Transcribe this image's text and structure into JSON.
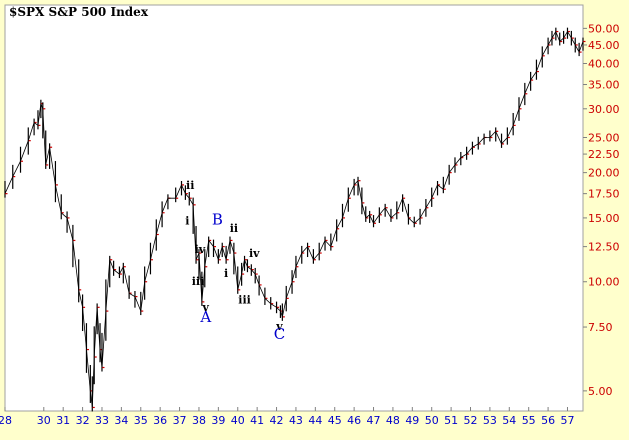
{
  "chart_data": {
    "type": "line",
    "title": "$SPX S&P 500 Index",
    "yscale": "log",
    "ylim": [
      4.4,
      58
    ],
    "yticks": [
      "5.00",
      "7.50",
      "10.00",
      "12.50",
      "15.00",
      "17.50",
      "20.00",
      "22.50",
      "25.00",
      "30.00",
      "35.00",
      "40.00",
      "45.00",
      "50.00"
    ],
    "ytick_values": [
      5,
      7.5,
      10,
      12.5,
      15,
      17.5,
      20,
      22.5,
      25,
      30,
      35,
      40,
      45,
      50
    ],
    "xlim": [
      1928.0,
      1957.8
    ],
    "xticks": [
      "28",
      "30",
      "31",
      "32",
      "33",
      "34",
      "35",
      "36",
      "37",
      "38",
      "39",
      "40",
      "41",
      "42",
      "43",
      "44",
      "45",
      "46",
      "47",
      "48",
      "49",
      "50",
      "51",
      "52",
      "53",
      "54",
      "55",
      "56",
      "57"
    ],
    "xtick_values": [
      1928,
      1930,
      1931,
      1932,
      1933,
      1934,
      1935,
      1936,
      1937,
      1938,
      1939,
      1940,
      1941,
      1942,
      1943,
      1944,
      1945,
      1946,
      1947,
      1948,
      1949,
      1950,
      1951,
      1952,
      1953,
      1954,
      1955,
      1956,
      1957
    ],
    "grid": false,
    "series": [
      {
        "color": "#CC0000",
        "x": [
          1928.0,
          1928.4,
          1928.8,
          1929.2,
          1929.5,
          1929.7,
          1929.85,
          1929.95,
          1930.1,
          1930.3,
          1930.6,
          1930.9,
          1931.2,
          1931.5,
          1931.8,
          1932.0,
          1932.2,
          1932.4,
          1932.5,
          1932.6,
          1932.75,
          1932.9,
          1933.0,
          1933.2,
          1933.4,
          1933.6,
          1933.9,
          1934.1,
          1934.4,
          1934.7,
          1935.0,
          1935.2,
          1935.5,
          1935.8,
          1936.1,
          1936.4,
          1936.8,
          1937.1,
          1937.3,
          1937.5,
          1937.7,
          1937.85,
          1938.0,
          1938.15,
          1938.3,
          1938.5,
          1938.75,
          1939.0,
          1939.2,
          1939.4,
          1939.6,
          1939.8,
          1940.0,
          1940.2,
          1940.35,
          1940.5,
          1940.7,
          1940.9,
          1941.1,
          1941.4,
          1941.7,
          1942.0,
          1942.2,
          1942.3,
          1942.5,
          1942.8,
          1943.0,
          1943.3,
          1943.6,
          1943.9,
          1944.2,
          1944.5,
          1944.8,
          1945.1,
          1945.4,
          1945.7,
          1946.0,
          1946.2,
          1946.4,
          1946.6,
          1946.8,
          1947.0,
          1947.3,
          1947.6,
          1947.9,
          1948.2,
          1948.5,
          1948.8,
          1949.1,
          1949.4,
          1949.7,
          1950.0,
          1950.3,
          1950.6,
          1950.9,
          1951.2,
          1951.5,
          1951.8,
          1952.1,
          1952.4,
          1952.7,
          1953.0,
          1953.3,
          1953.6,
          1953.9,
          1954.2,
          1954.5,
          1954.8,
          1955.1,
          1955.4,
          1955.7,
          1956.0,
          1956.2,
          1956.4,
          1956.6,
          1956.8,
          1957.0,
          1957.2,
          1957.4,
          1957.6,
          1957.8
        ],
        "values": [
          17.5,
          19.5,
          21.5,
          24.5,
          27.5,
          27,
          31,
          30,
          21,
          23.5,
          18.5,
          15.5,
          15,
          13,
          9.5,
          8.5,
          6.5,
          5.0,
          4.5,
          6.2,
          8.5,
          6.5,
          5.8,
          8.3,
          11.5,
          10.8,
          10.5,
          11,
          9.3,
          9.1,
          8.3,
          10,
          11.5,
          13.5,
          15.5,
          17,
          17,
          18.5,
          17.5,
          17,
          16.3,
          11.5,
          12,
          8.8,
          11,
          13,
          12.5,
          11.5,
          12.5,
          11.5,
          13,
          12,
          9.5,
          10.5,
          11.5,
          11,
          10.8,
          10.5,
          9.8,
          9,
          8.7,
          8.5,
          8.3,
          8.0,
          9,
          10,
          11,
          12,
          12.5,
          11.5,
          12,
          13,
          12.5,
          14,
          15,
          17,
          18.5,
          19,
          16.5,
          15,
          15.3,
          14.5,
          15.3,
          16,
          15,
          15.5,
          17,
          15,
          14.5,
          15,
          16,
          17,
          18.5,
          18,
          20,
          21,
          22,
          22.5,
          23.5,
          24,
          25,
          25,
          26,
          24,
          25,
          27,
          30,
          33,
          36,
          38,
          42,
          45,
          47,
          49,
          46,
          47,
          49,
          47,
          45,
          43,
          46
        ]
      }
    ],
    "annotations": [
      {
        "text": "ii",
        "x": 1937.55,
        "y": 18.0,
        "style": "black"
      },
      {
        "text": "i",
        "x": 1937.4,
        "y": 14.4,
        "style": "black"
      },
      {
        "text": "iv",
        "x": 1938.05,
        "y": 12.0,
        "style": "black"
      },
      {
        "text": "iii",
        "x": 1937.95,
        "y": 9.8,
        "style": "black"
      },
      {
        "text": "v",
        "x": 1938.35,
        "y": 8.3,
        "style": "black"
      },
      {
        "text": "A",
        "x": 1938.35,
        "y": 7.75,
        "style": "blue"
      },
      {
        "text": "B",
        "x": 1938.95,
        "y": 14.4,
        "style": "blue"
      },
      {
        "text": "ii",
        "x": 1939.8,
        "y": 13.7,
        "style": "black"
      },
      {
        "text": "i",
        "x": 1939.4,
        "y": 10.3,
        "style": "black"
      },
      {
        "text": "iv",
        "x": 1940.85,
        "y": 11.7,
        "style": "black"
      },
      {
        "text": "iii",
        "x": 1940.35,
        "y": 8.7,
        "style": "black"
      },
      {
        "text": "v",
        "x": 1942.15,
        "y": 7.35,
        "style": "black"
      },
      {
        "text": "C",
        "x": 1942.15,
        "y": 6.95,
        "style": "blue"
      }
    ]
  }
}
